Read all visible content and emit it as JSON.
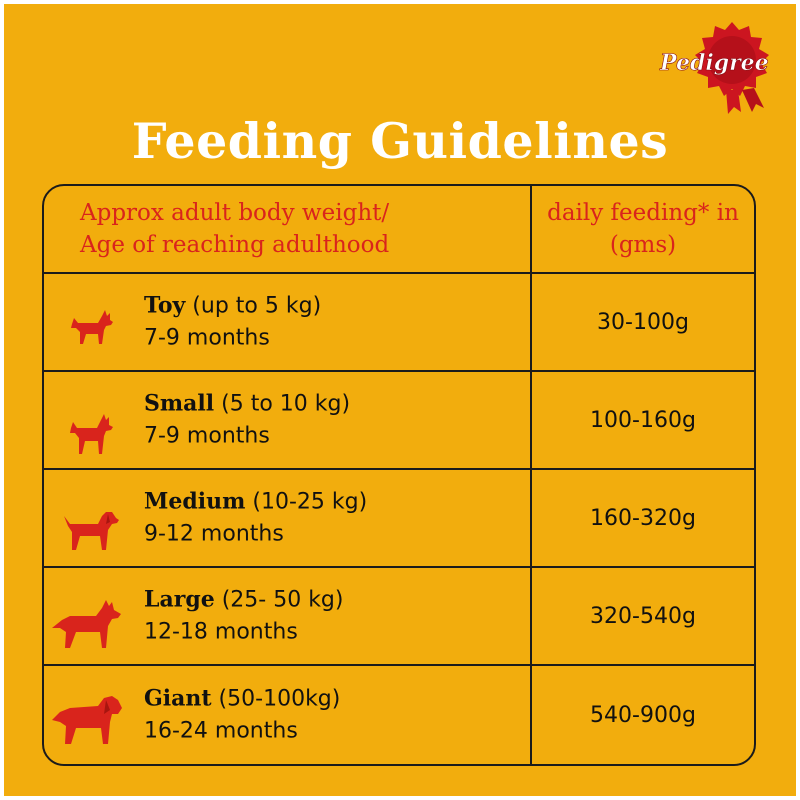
{
  "brand": {
    "name": "Pedigree",
    "colors": {
      "background": "#f2ad0d",
      "accent": "#d9241c",
      "title": "#ffffff"
    }
  },
  "title": "Feeding Guidelines",
  "table": {
    "header": {
      "col1_line1": "Approx adult body weight/",
      "col1_line2": "Age of reaching adulthood",
      "col2_line1": "daily feeding* in",
      "col2_line2": "(gms)"
    },
    "rows": [
      {
        "icon": "toy-dog-icon",
        "size": "Toy",
        "weight": " (up to 5 kg)",
        "age": "7-9 months",
        "amount": "30-100g"
      },
      {
        "icon": "small-dog-icon",
        "size": "Small",
        "weight": " (5 to 10 kg)",
        "age": "7-9 months",
        "amount": "100-160g"
      },
      {
        "icon": "medium-dog-icon",
        "size": "Medium",
        "weight": " (10-25 kg)",
        "age": "9-12 months",
        "amount": "160-320g"
      },
      {
        "icon": "large-dog-icon",
        "size": "Large",
        "weight": " (25- 50 kg)",
        "age": "12-18 months",
        "amount": "320-540g"
      },
      {
        "icon": "giant-dog-icon",
        "size": "Giant",
        "weight": " (50-100kg)",
        "age": "16-24 months",
        "amount": "540-900g"
      }
    ]
  }
}
